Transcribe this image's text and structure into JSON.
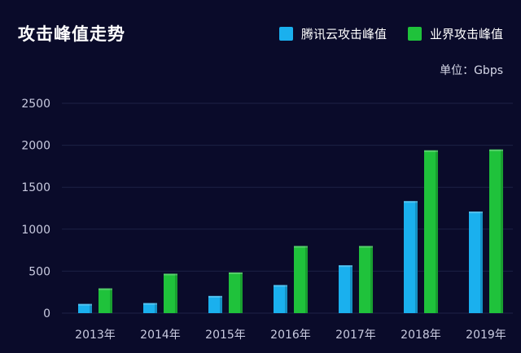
{
  "title": "攻击峰值走势",
  "unit_label": "单位：Gbps",
  "colors": {
    "background": "#0a0b2a",
    "grid": "#1d2145",
    "tencent": "#1ab0ee",
    "industry": "#1fc23b"
  },
  "chart_data": {
    "type": "bar",
    "title": "攻击峰值走势",
    "xlabel": "",
    "ylabel": "",
    "unit": "单位：Gbps",
    "categories": [
      "2013年",
      "2014年",
      "2015年",
      "2016年",
      "2017年",
      "2018年",
      "2019年"
    ],
    "series": [
      {
        "name": "腾讯云攻击峰值",
        "color": "#1ab0ee",
        "values": [
          110,
          120,
          205,
          335,
          570,
          1335,
          1210
        ]
      },
      {
        "name": "业界攻击峰值",
        "color": "#1fc23b",
        "values": [
          295,
          470,
          485,
          800,
          800,
          1940,
          1950
        ]
      }
    ],
    "ylim": [
      0,
      2500
    ],
    "yticks": [
      0,
      500,
      1000,
      1500,
      2000,
      2500
    ],
    "grid": true,
    "legend_position": "top-right"
  }
}
